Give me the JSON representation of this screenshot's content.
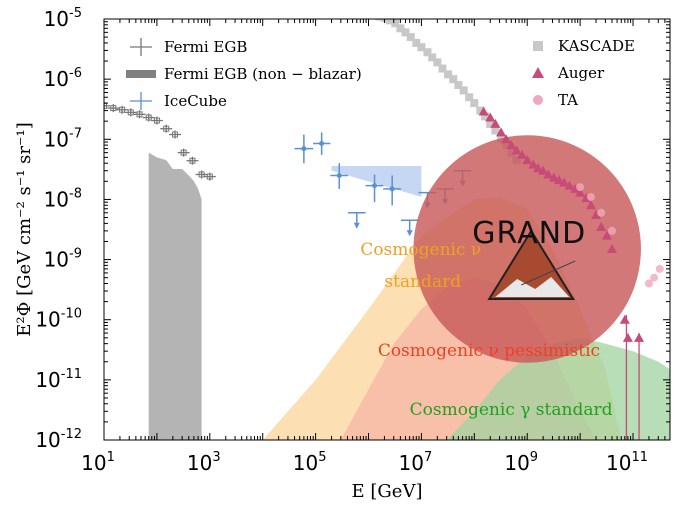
{
  "chart_data": {
    "type": "scatter",
    "x_scale": "log",
    "y_scale": "log",
    "xlim": [
      10,
      500000000000
    ],
    "ylim": [
      1e-12,
      1e-05
    ],
    "xlabel": "E [GeV]",
    "ylabel": "E²Φ [GeV cm⁻² s⁻¹ sr⁻¹]",
    "x_ticks": [
      {
        "base": "10",
        "exp": "1"
      },
      {
        "base": "10",
        "exp": "3"
      },
      {
        "base": "10",
        "exp": "5"
      },
      {
        "base": "10",
        "exp": "7"
      },
      {
        "base": "10",
        "exp": "9"
      },
      {
        "base": "10",
        "exp": "11"
      }
    ],
    "y_ticks": [
      {
        "base": "10",
        "exp": "-12"
      },
      {
        "base": "10",
        "exp": "-11"
      },
      {
        "base": "10",
        "exp": "-10"
      },
      {
        "base": "10",
        "exp": "-9"
      },
      {
        "base": "10",
        "exp": "-8"
      },
      {
        "base": "10",
        "exp": "-7"
      },
      {
        "base": "10",
        "exp": "-6"
      },
      {
        "base": "10",
        "exp": "-5"
      }
    ],
    "legend_left": {
      "placement": "top-left",
      "entries": [
        {
          "label": "Fermi EGB",
          "color": "#777777",
          "marker": "plus"
        },
        {
          "label": "Fermi EGB (non − blazar)",
          "color": "#808080",
          "marker": "band"
        },
        {
          "label": "IceCube",
          "color": "#5b8fd6",
          "marker": "plus"
        }
      ]
    },
    "legend_right": {
      "placement": "top-right",
      "entries": [
        {
          "label": "KASCADE",
          "color": "#c8c8c8",
          "marker": "square"
        },
        {
          "label": "Auger",
          "color": "#c84a78",
          "marker": "triangle"
        },
        {
          "label": "TA",
          "color": "#f1a7bb",
          "marker": "circle"
        }
      ]
    },
    "annotations": [
      {
        "id": "cosmo-nu-std-1",
        "text": "Cosmogenic ν",
        "color": "#f0a020",
        "x": 700000,
        "y": 1.2e-09
      },
      {
        "id": "cosmo-nu-std-2",
        "text": "standard",
        "color": "#f0a020",
        "x": 2000000,
        "y": 3.5e-10
      },
      {
        "id": "cosmo-nu-pess",
        "text": "Cosmogenic ν pessimistic",
        "color": "#f04020",
        "x": 1500000,
        "y": 2.5e-11
      },
      {
        "id": "cosmo-gamma",
        "text": "Cosmogenic γ standard",
        "color": "#22a022",
        "x": 6000000,
        "y": 2.6e-12
      }
    ],
    "grand_logo_text": "GRAND",
    "colors": {
      "fermi": "#777777",
      "fermi_band": "#b4b4b4",
      "icecube": "#5b8fd6",
      "icecube_band": "#bcd0f2",
      "kascade": "#c8c8c8",
      "auger": "#c84a78",
      "ta": "#f1a7bb",
      "nu_standard": "#fcdaa6",
      "nu_pessimistic": "#f8b8a6",
      "gamma_standard": "#9fd39f",
      "grand_circle": "#c85a5a"
    },
    "fermi_egb": [
      {
        "x": 10,
        "y": 3.6e-07
      },
      {
        "x": 15,
        "y": 3.3e-07
      },
      {
        "x": 22,
        "y": 3.1e-07
      },
      {
        "x": 32,
        "y": 2.8e-07
      },
      {
        "x": 47,
        "y": 2.6e-07
      },
      {
        "x": 70,
        "y": 2.3e-07
      },
      {
        "x": 100,
        "y": 2.05e-07
      },
      {
        "x": 150,
        "y": 1.5e-07
      },
      {
        "x": 220,
        "y": 1.2e-07
      },
      {
        "x": 320,
        "y": 6e-08
      },
      {
        "x": 470,
        "y": 4.4e-08
      },
      {
        "x": 700,
        "y": 2.6e-08
      },
      {
        "x": 1000,
        "y": 2.4e-08
      }
    ],
    "fermi_band": {
      "upper": [
        [
          70,
          6e-08
        ],
        [
          100,
          5e-08
        ],
        [
          150,
          4.5e-08
        ],
        [
          200,
          3.2e-08
        ],
        [
          300,
          3.2e-08
        ],
        [
          400,
          2.5e-08
        ],
        [
          500,
          2e-08
        ],
        [
          600,
          1.5e-08
        ],
        [
          700,
          1e-08
        ]
      ],
      "lower": [
        [
          70,
          1e-12
        ],
        [
          700,
          1e-12
        ]
      ]
    },
    "icecube_points": [
      {
        "x": 60000,
        "y": 7e-08,
        "xlo": 40000,
        "xhi": 90000,
        "ylo": 4e-08,
        "yhi": 1.2e-07
      },
      {
        "x": 130000,
        "y": 8.5e-08,
        "xlo": 90000,
        "xhi": 190000,
        "ylo": 5.5e-08,
        "yhi": 1.3e-07
      },
      {
        "x": 280000,
        "y": 2.5e-08,
        "xlo": 190000,
        "xhi": 410000,
        "ylo": 1.5e-08,
        "yhi": 4e-08
      },
      {
        "x": 600000,
        "y": 6e-09,
        "xlo": 410000,
        "xhi": 880000,
        "ylo": 0,
        "yhi": 0,
        "upper_limit": true
      },
      {
        "x": 1300000,
        "y": 1.7e-08,
        "xlo": 880000,
        "xhi": 1900000,
        "ylo": 9e-09,
        "yhi": 2.6e-08
      },
      {
        "x": 2800000,
        "y": 1.5e-08,
        "xlo": 1900000,
        "xhi": 4100000,
        "ylo": 8e-09,
        "yhi": 2.5e-08
      },
      {
        "x": 6000000,
        "y": 4.5e-09,
        "xlo": 4100000,
        "xhi": 8800000,
        "ylo": 0,
        "yhi": 0,
        "upper_limit": true
      },
      {
        "x": 13000000,
        "y": 1.3e-08,
        "xlo": 8800000,
        "xhi": 19000000,
        "ylo": 0,
        "yhi": 0,
        "upper_limit": true
      },
      {
        "x": 28000000,
        "y": 1.5e-08,
        "xlo": 19000000,
        "xhi": 41000000,
        "ylo": 0,
        "yhi": 0,
        "upper_limit": true
      },
      {
        "x": 60000000,
        "y": 3e-08,
        "xlo": 41000000,
        "xhi": 88000000,
        "ylo": 0,
        "yhi": 0,
        "upper_limit": true
      }
    ],
    "icecube_band": [
      [
        200000,
        3.6e-08
      ],
      [
        10000000,
        3.6e-08
      ],
      [
        10000000,
        1.1e-08
      ],
      [
        200000,
        3e-08
      ]
    ],
    "kascade": [
      [
        1000000,
        1.3e-05
      ],
      [
        1300000,
        1.2e-05
      ],
      [
        1600000,
        1.1e-05
      ],
      [
        2000000,
        1.05e-05
      ],
      [
        2500000,
        9.5e-06
      ],
      [
        3200000,
        8.5e-06
      ],
      [
        4000000,
        7e-06
      ],
      [
        5000000,
        6e-06
      ],
      [
        6300000,
        5e-06
      ],
      [
        8000000,
        4e-06
      ],
      [
        10000000,
        3.4e-06
      ],
      [
        13000000,
        2.8e-06
      ],
      [
        16000000,
        2.3e-06
      ],
      [
        20000000,
        1.9e-06
      ],
      [
        25000000,
        1.5e-06
      ],
      [
        32000000,
        1.2e-06
      ],
      [
        40000000,
        1e-06
      ],
      [
        50000000,
        8e-07
      ],
      [
        63000000,
        6.5e-07
      ],
      [
        80000000,
        5e-07
      ],
      [
        100000000,
        4e-07
      ],
      [
        130000000,
        3e-07
      ],
      [
        160000000,
        2.4e-07
      ],
      [
        200000000,
        1.8e-07
      ],
      [
        250000000,
        1.4e-07
      ],
      [
        320000000,
        1e-07
      ],
      [
        400000000,
        8e-08
      ],
      [
        500000000,
        6e-08
      ],
      [
        630000000,
        4.5e-08
      ]
    ],
    "auger": [
      [
        150000000,
        2.9e-07
      ],
      [
        200000000,
        2.3e-07
      ],
      [
        250000000,
        1.8e-07
      ],
      [
        320000000,
        1.3e-07
      ],
      [
        400000000,
        1e-07
      ],
      [
        500000000,
        8e-08
      ],
      [
        630000000,
        6.5e-08
      ],
      [
        800000000,
        5.5e-08
      ],
      [
        1000000000,
        4.5e-08
      ],
      [
        1300000000,
        3.8e-08
      ],
      [
        1600000000,
        3.3e-08
      ],
      [
        2000000000,
        3e-08
      ],
      [
        2500000000,
        2.6e-08
      ],
      [
        3200000000,
        2.3e-08
      ],
      [
        4000000000,
        2.1e-08
      ],
      [
        5000000000,
        1.9e-08
      ],
      [
        6300000000,
        1.7e-08
      ],
      [
        8000000000,
        1.5e-08
      ],
      [
        10000000000,
        1.3e-08
      ],
      [
        13000000000,
        1.05e-08
      ],
      [
        16000000000,
        8e-09
      ],
      [
        20000000000,
        5.5e-09
      ],
      [
        25000000000,
        3.5e-09
      ],
      [
        32000000000,
        2.5e-09
      ],
      [
        40000000000,
        1.5e-09
      ],
      [
        70000000000,
        1e-10
      ],
      [
        80000000000,
        5e-11
      ],
      [
        130000000000,
        5e-11
      ]
    ],
    "ta": [
      [
        10000000000,
        1.6e-08
      ],
      [
        16000000000,
        1.1e-08
      ],
      [
        25000000000,
        6e-09
      ],
      [
        40000000000,
        3e-09
      ],
      [
        200000000000,
        4e-10
      ],
      [
        250000000000,
        5e-10
      ],
      [
        320000000000,
        7e-10
      ]
    ],
    "nu_standard_band": {
      "upper": [
        [
          10000.0,
          1e-12
        ],
        [
          100000.0,
          1e-11
        ],
        [
          1000000.0,
          1.5e-10
        ],
        [
          10000000.0,
          2.5e-09
        ],
        [
          30000000.0,
          5e-09
        ],
        [
          100000000.0,
          1e-08
        ],
        [
          300000000.0,
          1.1e-08
        ],
        [
          1000000000.0,
          7e-09
        ],
        [
          3000000000.0,
          1.5e-09
        ],
        [
          10000000000.0,
          1.5e-10
        ],
        [
          30000000000.0,
          1.5e-11
        ],
        [
          60000000000.0,
          1e-12
        ]
      ],
      "lower": [
        [
          8000.0,
          1e-12
        ],
        [
          60000000000.0,
          1e-12
        ]
      ]
    },
    "nu_pessimistic_band": {
      "upper": [
        [
          300000.0,
          1e-12
        ],
        [
          1000000.0,
          7e-12
        ],
        [
          3000000.0,
          4e-11
        ],
        [
          10000000.0,
          1.5e-10
        ],
        [
          30000000.0,
          3.5e-10
        ],
        [
          100000000.0,
          5e-10
        ],
        [
          300000000.0,
          4e-10
        ],
        [
          1000000000.0,
          1.5e-10
        ],
        [
          3000000000.0,
          3e-11
        ],
        [
          10000000000.0,
          3e-12
        ],
        [
          20000000000.0,
          1e-12
        ]
      ],
      "lower": [
        [
          300000.0,
          1e-12
        ],
        [
          20000000000.0,
          1e-12
        ]
      ]
    },
    "gamma_standard_band": {
      "upper": [
        [
          30000000.0,
          1e-12
        ],
        [
          100000000.0,
          3e-12
        ],
        [
          300000000.0,
          1e-11
        ],
        [
          1000000000.0,
          2.5e-11
        ],
        [
          3000000000.0,
          4e-11
        ],
        [
          10000000000.0,
          5e-11
        ],
        [
          30000000000.0,
          4e-11
        ],
        [
          100000000000.0,
          3e-11
        ],
        [
          300000000000.0,
          2e-11
        ],
        [
          500000000000.0,
          1.5e-11
        ]
      ],
      "lower": [
        [
          30000000.0,
          1e-12
        ],
        [
          500000000000.0,
          1e-12
        ]
      ]
    },
    "grand_circle": {
      "x": 1000000000,
      "y": 1.5e-09,
      "r_x_decades": 2.15,
      "r_y_decades": 2.15
    }
  }
}
